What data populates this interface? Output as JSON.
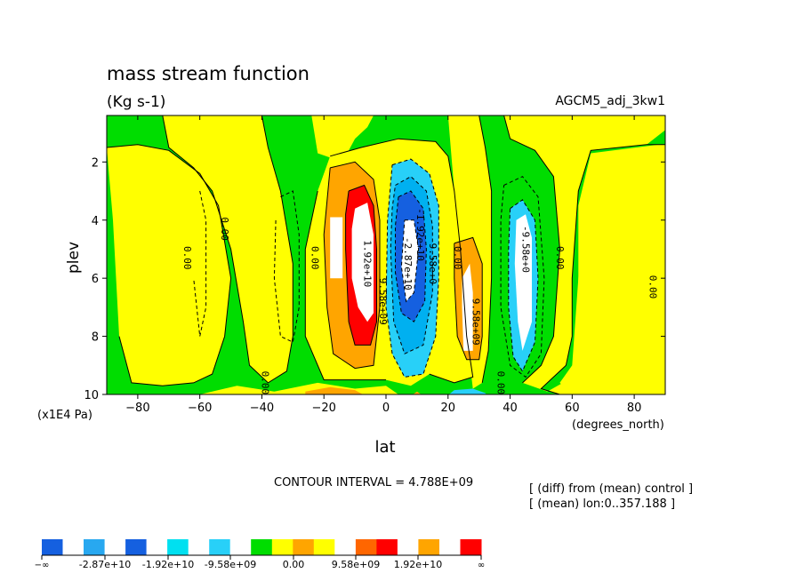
{
  "chart_data": {
    "type": "heatmap",
    "title": "mass stream function",
    "units": "(Kg s-1)",
    "dataset": "AGCM5_adj_3kw1",
    "xlabel": "lat",
    "ylabel": "plev",
    "y_scale_note": "(x1E4 Pa)",
    "x_units": "(degrees_north)",
    "xlim": [
      -90,
      90
    ],
    "ylim": [
      10,
      0.4
    ],
    "xticks": [
      {
        "v": -80,
        "label": "−80"
      },
      {
        "v": -60,
        "label": "−60"
      },
      {
        "v": -40,
        "label": "−40"
      },
      {
        "v": -20,
        "label": "−20"
      },
      {
        "v": 0,
        "label": "0"
      },
      {
        "v": 20,
        "label": "20"
      },
      {
        "v": 40,
        "label": "40"
      },
      {
        "v": 60,
        "label": "60"
      },
      {
        "v": 80,
        "label": "80"
      }
    ],
    "yticks": [
      {
        "v": 2,
        "label": "2"
      },
      {
        "v": 4,
        "label": "4"
      },
      {
        "v": 6,
        "label": "6"
      },
      {
        "v": 8,
        "label": "8"
      },
      {
        "v": 10,
        "label": "10"
      }
    ],
    "contour_interval_text": "CONTOUR INTERVAL = 4.788E+09",
    "info_lines": [
      "[ (diff) from (mean) control ]",
      "[ (mean) lon:0..357.188 ]"
    ],
    "contour_labels": [
      {
        "text": "0.00",
        "x": -65,
        "y": 5.3
      },
      {
        "text": "0.00",
        "x": -53,
        "y": 4.3
      },
      {
        "text": "0.00",
        "x": -24,
        "y": 5.3
      },
      {
        "text": "0.00",
        "x": -40,
        "y": 9.6
      },
      {
        "text": "1.92e+10",
        "x": -7,
        "y": 5.5
      },
      {
        "text": "9.58e+09",
        "x": -2,
        "y": 6.8
      },
      {
        "text": "-2.87e+10",
        "x": 6,
        "y": 5.5
      },
      {
        "text": "-1.92e+10",
        "x": 10,
        "y": 4.5
      },
      {
        "text": "9.58e+0",
        "x": 14,
        "y": 5.5
      },
      {
        "text": "0.00",
        "x": 22,
        "y": 5.3
      },
      {
        "text": "9.58e+09",
        "x": 28,
        "y": 7.5
      },
      {
        "text": "0.00",
        "x": 36,
        "y": 9.6
      },
      {
        "text": "-9.58e+0",
        "x": 44,
        "y": 5
      },
      {
        "text": "0.00",
        "x": 55,
        "y": 5.3
      },
      {
        "text": "0.00",
        "x": 85,
        "y": 6.3
      }
    ],
    "colorbar": {
      "edge_labels": [
        "−∞",
        "∞"
      ],
      "labels": [
        "-2.87e+10",
        "-1.92e+10",
        "-9.58e+09",
        "0.00",
        "9.58e+09",
        "1.92e+10"
      ],
      "colors": [
        "#1560e0",
        "#ffffff",
        "#28a8f0",
        "#ffffff",
        "#1560e0",
        "#ffffff",
        "#00e0f0",
        "#ffffff",
        "#28d0f8",
        "#ffffff",
        "#00dd00",
        "#ffff00",
        "#ffa500",
        "#ffff00",
        "#ffffff",
        "#ff6600",
        "#ff0000",
        "#ffffff",
        "#ffa500",
        "#ffffff",
        "#ff0000"
      ]
    }
  }
}
